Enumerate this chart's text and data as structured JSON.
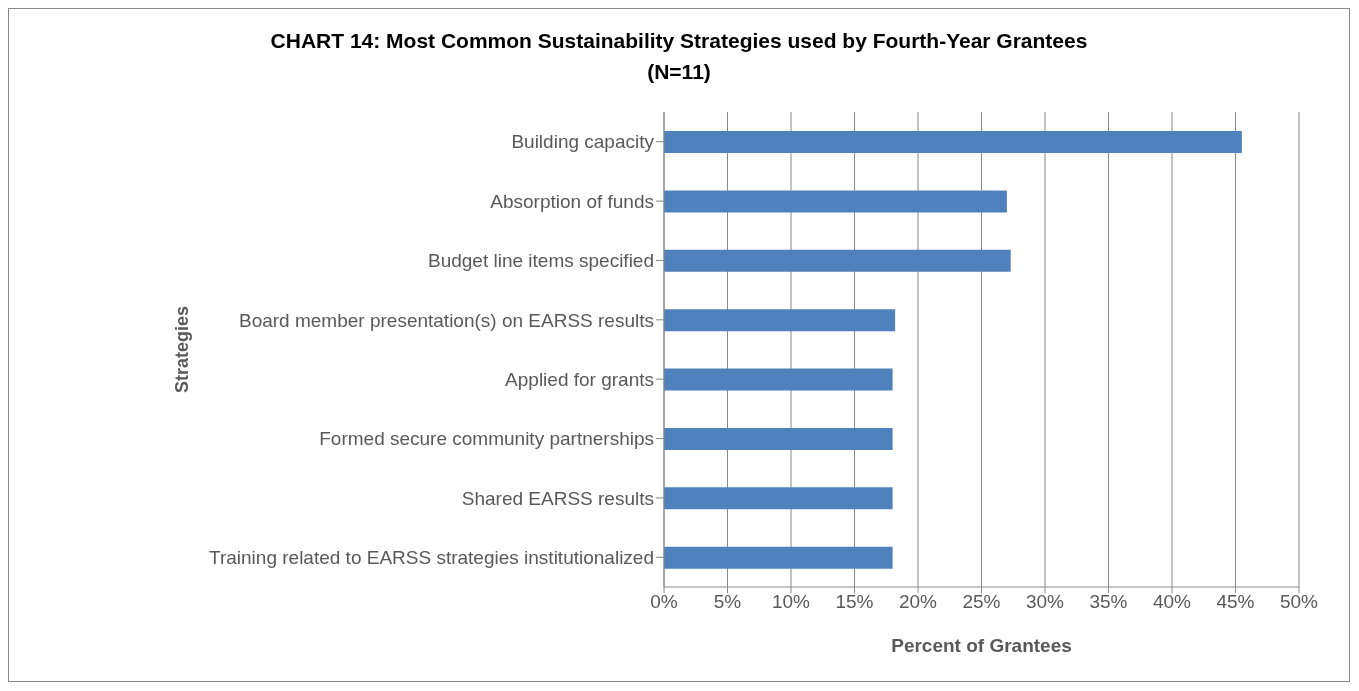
{
  "chart_data": {
    "type": "bar",
    "orientation": "horizontal",
    "title": "CHART 14: Most Common Sustainability Strategies used by Fourth-Year Grantees\n(N=11)",
    "xlabel": "Percent of Grantees",
    "ylabel": "Strategies",
    "categories": [
      "Building capacity",
      "Absorption of funds",
      "Budget line items specified",
      "Board member presentation(s) on EARSS results",
      "Applied for grants",
      "Formed secure community partnerships",
      "Shared EARSS results",
      "Training related to EARSS strategies  institutionalized"
    ],
    "values": [
      45.5,
      27.0,
      27.3,
      18.2,
      18.0,
      18.0,
      18.0,
      18.0
    ],
    "color": "#4f81bd",
    "xlim": [
      0,
      50
    ],
    "xticks": [
      {
        "value": 0,
        "label": "0%"
      },
      {
        "value": 5,
        "label": "5%"
      },
      {
        "value": 10,
        "label": "10%"
      },
      {
        "value": 15,
        "label": "15%"
      },
      {
        "value": 20,
        "label": "20%"
      },
      {
        "value": 25,
        "label": "25%"
      },
      {
        "value": 30,
        "label": "30%"
      },
      {
        "value": 35,
        "label": "35%"
      },
      {
        "value": 40,
        "label": "40%"
      },
      {
        "value": 45,
        "label": "45%"
      },
      {
        "value": 50,
        "label": "50%"
      }
    ],
    "grid": "x",
    "legend": false
  }
}
